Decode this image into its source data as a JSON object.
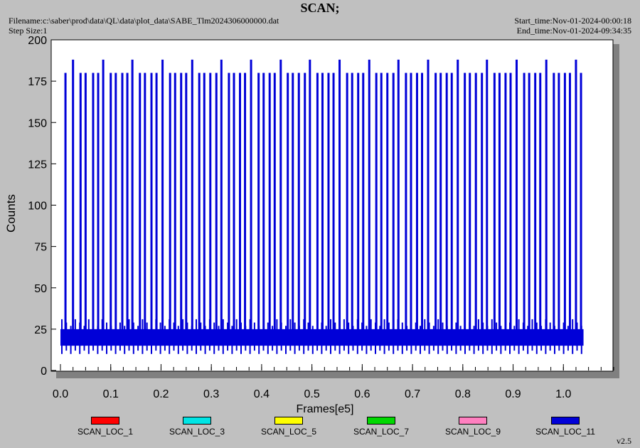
{
  "header": {
    "title": "SCAN;",
    "filename": "Filename:c:\\saber\\prod\\data\\QL\\data\\plot_data\\SABE_Tlm2024306000000.dat",
    "step_size": "Step Size:1",
    "start_time": "Start_time:Nov-01-2024-00:00:18",
    "end_time": "End_time:Nov-01-2024-09:34:35"
  },
  "version": "v2.5",
  "colors": {
    "background": "#c0c0c0",
    "plot_area": "#ffffff",
    "main_series": "#0000d8"
  },
  "chart_data": {
    "type": "line",
    "title": "SCAN;",
    "xlabel": "Frames[e5]",
    "ylabel": "Counts",
    "xlim": [
      0.0,
      1.1
    ],
    "ylim": [
      0,
      200
    ],
    "x_ticks": [
      "0.0",
      "0.1",
      "0.2",
      "0.3",
      "0.4",
      "0.5",
      "0.6",
      "0.7",
      "0.8",
      "0.9",
      "1.0"
    ],
    "y_ticks": [
      "0",
      "25",
      "50",
      "75",
      "100",
      "125",
      "150",
      "175",
      "200"
    ],
    "grid": false,
    "legend_position": "bottom",
    "series": [
      {
        "name": "SCAN_LOC_1",
        "color": "#ff0000"
      },
      {
        "name": "SCAN_LOC_3",
        "color": "#00e5e5"
      },
      {
        "name": "SCAN_LOC_5",
        "color": "#ffff00"
      },
      {
        "name": "SCAN_LOC_7",
        "color": "#00d800"
      },
      {
        "name": "SCAN_LOC_9",
        "color": "#ff80c0"
      },
      {
        "name": "SCAN_LOC_11",
        "color": "#0000d8",
        "baseline_range": [
          15,
          25
        ],
        "baseline_noise_range": [
          10,
          31
        ],
        "data_extent": [
          0.0,
          1.04
        ],
        "spikes": [
          {
            "x": 0.01,
            "y": 180
          },
          {
            "x": 0.025,
            "y": 188
          },
          {
            "x": 0.04,
            "y": 180
          },
          {
            "x": 0.05,
            "y": 180
          },
          {
            "x": 0.065,
            "y": 180
          },
          {
            "x": 0.075,
            "y": 180
          },
          {
            "x": 0.085,
            "y": 188
          },
          {
            "x": 0.1,
            "y": 180
          },
          {
            "x": 0.11,
            "y": 180
          },
          {
            "x": 0.123,
            "y": 180
          },
          {
            "x": 0.133,
            "y": 180
          },
          {
            "x": 0.143,
            "y": 188
          },
          {
            "x": 0.158,
            "y": 180
          },
          {
            "x": 0.168,
            "y": 180
          },
          {
            "x": 0.181,
            "y": 180
          },
          {
            "x": 0.191,
            "y": 180
          },
          {
            "x": 0.203,
            "y": 188
          },
          {
            "x": 0.218,
            "y": 180
          },
          {
            "x": 0.228,
            "y": 180
          },
          {
            "x": 0.24,
            "y": 180
          },
          {
            "x": 0.25,
            "y": 180
          },
          {
            "x": 0.262,
            "y": 188
          },
          {
            "x": 0.276,
            "y": 180
          },
          {
            "x": 0.286,
            "y": 180
          },
          {
            "x": 0.298,
            "y": 180
          },
          {
            "x": 0.31,
            "y": 180
          },
          {
            "x": 0.32,
            "y": 188
          },
          {
            "x": 0.335,
            "y": 180
          },
          {
            "x": 0.345,
            "y": 180
          },
          {
            "x": 0.357,
            "y": 180
          },
          {
            "x": 0.367,
            "y": 180
          },
          {
            "x": 0.379,
            "y": 188
          },
          {
            "x": 0.394,
            "y": 180
          },
          {
            "x": 0.404,
            "y": 180
          },
          {
            "x": 0.416,
            "y": 180
          },
          {
            "x": 0.426,
            "y": 180
          },
          {
            "x": 0.438,
            "y": 188
          },
          {
            "x": 0.452,
            "y": 180
          },
          {
            "x": 0.462,
            "y": 180
          },
          {
            "x": 0.474,
            "y": 180
          },
          {
            "x": 0.486,
            "y": 180
          },
          {
            "x": 0.496,
            "y": 188
          },
          {
            "x": 0.511,
            "y": 180
          },
          {
            "x": 0.521,
            "y": 180
          },
          {
            "x": 0.533,
            "y": 180
          },
          {
            "x": 0.543,
            "y": 180
          },
          {
            "x": 0.555,
            "y": 188
          },
          {
            "x": 0.57,
            "y": 180
          },
          {
            "x": 0.58,
            "y": 180
          },
          {
            "x": 0.592,
            "y": 180
          },
          {
            "x": 0.602,
            "y": 180
          },
          {
            "x": 0.614,
            "y": 188
          },
          {
            "x": 0.628,
            "y": 180
          },
          {
            "x": 0.638,
            "y": 180
          },
          {
            "x": 0.65,
            "y": 180
          },
          {
            "x": 0.662,
            "y": 180
          },
          {
            "x": 0.672,
            "y": 188
          },
          {
            "x": 0.687,
            "y": 180
          },
          {
            "x": 0.697,
            "y": 180
          },
          {
            "x": 0.709,
            "y": 180
          },
          {
            "x": 0.719,
            "y": 180
          },
          {
            "x": 0.731,
            "y": 188
          },
          {
            "x": 0.746,
            "y": 180
          },
          {
            "x": 0.756,
            "y": 180
          },
          {
            "x": 0.768,
            "y": 180
          },
          {
            "x": 0.778,
            "y": 180
          },
          {
            "x": 0.79,
            "y": 188
          },
          {
            "x": 0.804,
            "y": 180
          },
          {
            "x": 0.814,
            "y": 180
          },
          {
            "x": 0.826,
            "y": 180
          },
          {
            "x": 0.838,
            "y": 180
          },
          {
            "x": 0.848,
            "y": 188
          },
          {
            "x": 0.863,
            "y": 180
          },
          {
            "x": 0.873,
            "y": 180
          },
          {
            "x": 0.885,
            "y": 180
          },
          {
            "x": 0.895,
            "y": 180
          },
          {
            "x": 0.907,
            "y": 188
          },
          {
            "x": 0.922,
            "y": 180
          },
          {
            "x": 0.932,
            "y": 180
          },
          {
            "x": 0.944,
            "y": 180
          },
          {
            "x": 0.954,
            "y": 180
          },
          {
            "x": 0.966,
            "y": 188
          },
          {
            "x": 0.981,
            "y": 180
          },
          {
            "x": 0.991,
            "y": 180
          },
          {
            "x": 1.003,
            "y": 180
          },
          {
            "x": 1.013,
            "y": 180
          },
          {
            "x": 1.025,
            "y": 188
          },
          {
            "x": 1.035,
            "y": 180
          }
        ]
      }
    ]
  }
}
